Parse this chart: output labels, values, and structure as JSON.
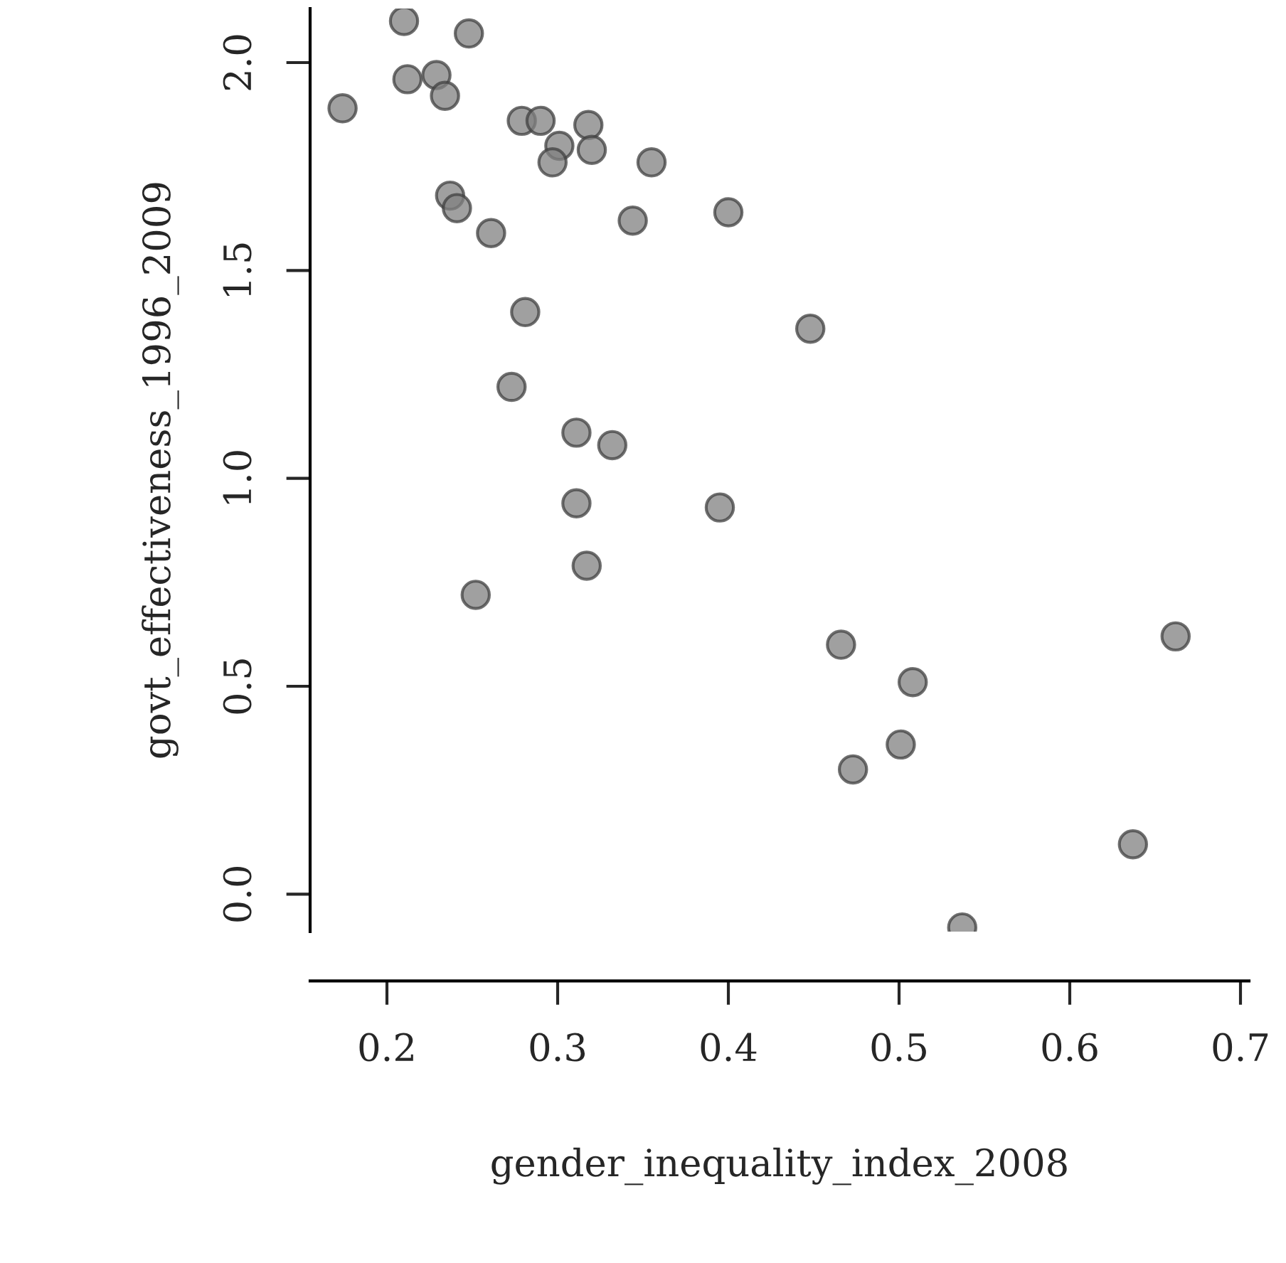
{
  "chart_data": {
    "type": "scatter",
    "xlabel": "gender_inequality_index_2008",
    "ylabel": "govt_effectiveness_1996_2009",
    "x": [
      0.174,
      0.21,
      0.212,
      0.229,
      0.234,
      0.248,
      0.237,
      0.241,
      0.261,
      0.279,
      0.29,
      0.301,
      0.297,
      0.318,
      0.32,
      0.355,
      0.344,
      0.4,
      0.281,
      0.273,
      0.448,
      0.311,
      0.332,
      0.311,
      0.395,
      0.317,
      0.252,
      0.466,
      0.508,
      0.662,
      0.473,
      0.501,
      0.637,
      0.537
    ],
    "values": [
      1.89,
      2.1,
      1.96,
      1.97,
      1.92,
      2.07,
      1.68,
      1.65,
      1.59,
      1.86,
      1.86,
      1.8,
      1.76,
      1.85,
      1.79,
      1.76,
      1.62,
      1.64,
      1.4,
      1.22,
      1.36,
      1.11,
      1.08,
      0.94,
      0.93,
      0.79,
      0.72,
      0.6,
      0.51,
      0.62,
      0.3,
      0.36,
      0.12,
      -0.08
    ],
    "color": "#808080",
    "marker": "circle",
    "grid": false,
    "xlim": [
      0.155,
      0.705
    ],
    "ylim": [
      -0.09,
      2.13
    ],
    "xticks": [
      0.2,
      0.3,
      0.4,
      0.5,
      0.6,
      0.7
    ],
    "yticks": [
      {
        "value": 0,
        "label": "0.0"
      },
      0.5,
      {
        "value": 1,
        "label": "1.0"
      },
      1.5,
      {
        "value": 2,
        "label": "2.0"
      }
    ]
  }
}
